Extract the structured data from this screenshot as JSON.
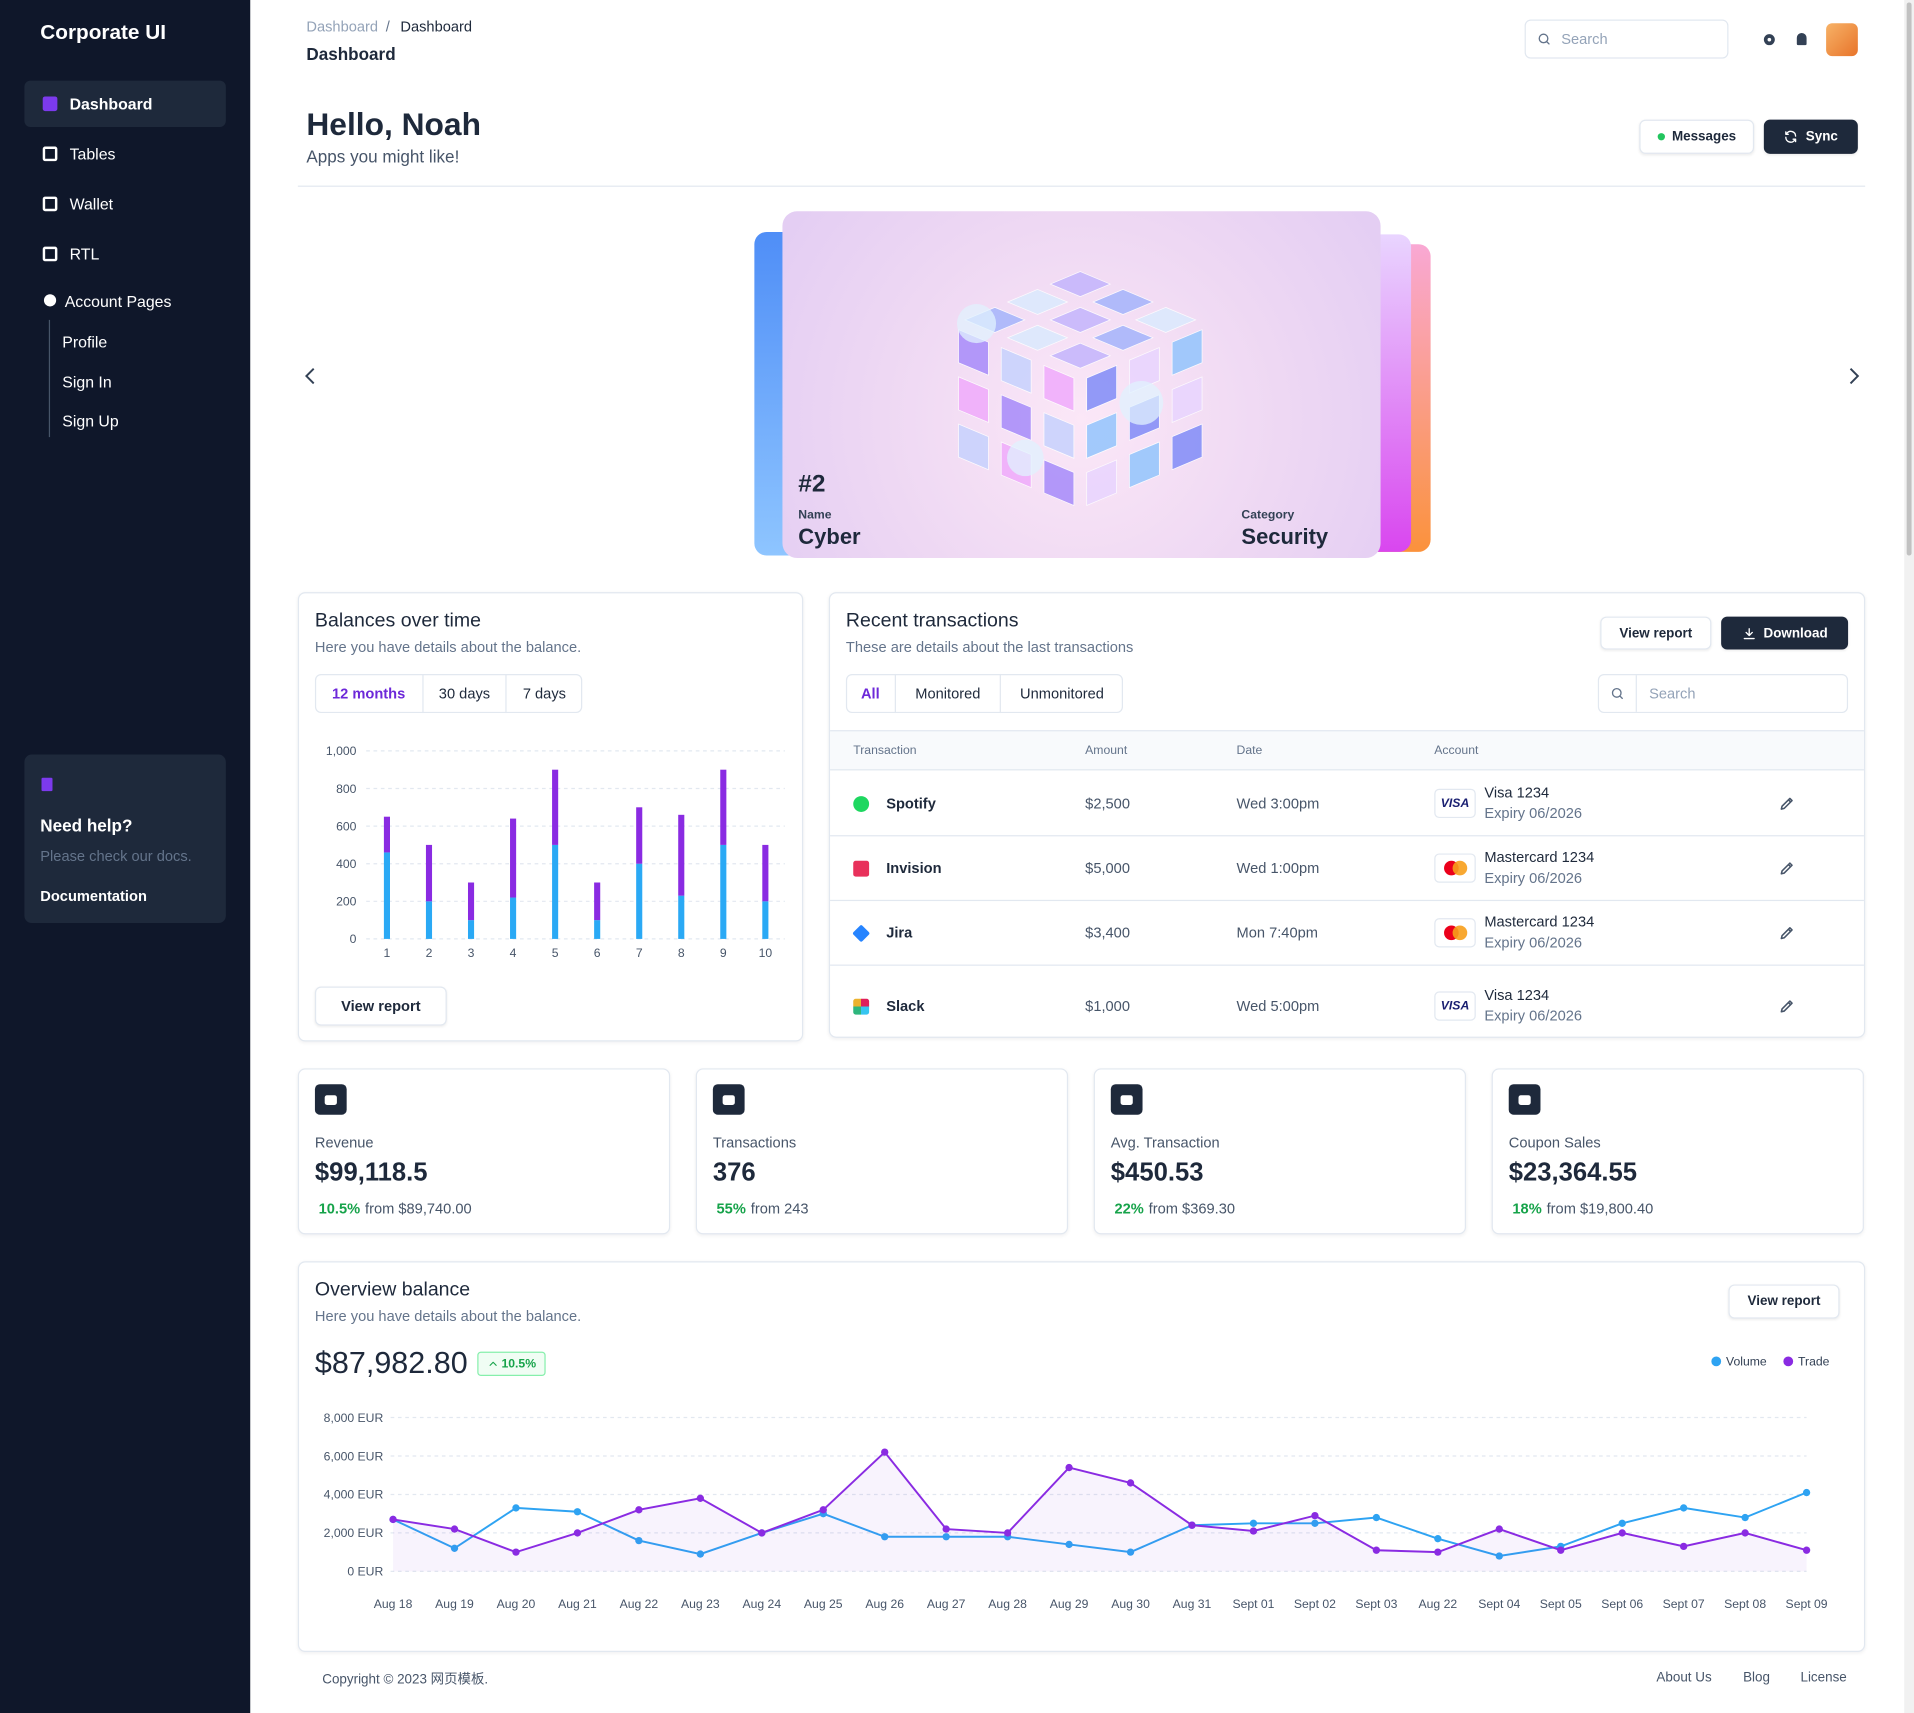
{
  "sidebar": {
    "brand": "Corporate UI",
    "nav": [
      "Dashboard",
      "Tables",
      "Wallet",
      "RTL",
      "Account Pages"
    ],
    "subnav": [
      "Profile",
      "Sign In",
      "Sign Up"
    ],
    "help": {
      "title": "Need help?",
      "text": "Please check our docs.",
      "link": "Documentation"
    }
  },
  "header": {
    "breadcrumb": [
      "Dashboard",
      "/",
      "Dashboard"
    ],
    "title": "Dashboard",
    "search": "Search"
  },
  "greeting": {
    "title": "Hello, Noah",
    "subtitle": "Apps you might like!",
    "buttons": [
      "Messages",
      "Sync"
    ]
  },
  "carousel": {
    "number": "#2",
    "name_label": "Name",
    "name": "Cyber",
    "category_label": "Category",
    "category": "Security"
  },
  "transactions": {
    "title": "Recent transactions",
    "subtitle": "These are details about the last transactions",
    "buttons": [
      "View report",
      "Download"
    ],
    "filters": [
      "All",
      "Monitored",
      "Unmonitored"
    ],
    "search": "Search",
    "columns": [
      "Transaction",
      "Amount",
      "Date",
      "Account"
    ],
    "rows": [
      {
        "name": "Spotify",
        "amount": "$2,500",
        "date": "Wed 3:00pm",
        "logo": "VISA",
        "card": "Visa 1234",
        "expiry": "Expiry 06/2026"
      },
      {
        "name": "Invision",
        "amount": "$5,000",
        "date": "Wed 1:00pm",
        "card": "Mastercard 1234",
        "expiry": "Expiry 06/2026"
      },
      {
        "name": "Jira",
        "amount": "$3,400",
        "date": "Mon 7:40pm",
        "card": "Mastercard 1234",
        "expiry": "Expiry 06/2026"
      },
      {
        "name": "Slack",
        "amount": "$1,000",
        "date": "Wed 5:00pm",
        "logo": "VISA",
        "card": "Visa 1234",
        "expiry": "Expiry 06/2026"
      }
    ]
  },
  "stats": [
    {
      "label": "Revenue",
      "value": "$99,118.5",
      "change": "10.5%",
      "from": "from $89,740.00"
    },
    {
      "label": "Transactions",
      "value": "376",
      "change": "55%",
      "from": "from 243"
    },
    {
      "label": "Avg. Transaction",
      "value": "$450.53",
      "change": "22%",
      "from": "from $369.30"
    },
    {
      "label": "Coupon Sales",
      "value": "$23,364.55",
      "change": "18%",
      "from": "from $19,800.40"
    }
  ],
  "footer": {
    "copyright": "Copyright © 2023 网页模板.",
    "links": [
      "About Us",
      "Blog",
      "License"
    ]
  },
  "chart_data": [
    {
      "type": "bar",
      "stacked": true,
      "title": "Balances over time",
      "subtitle": "Here you have details about the balance.",
      "tabs": [
        "12 months",
        "30 days",
        "7 days"
      ],
      "button": "View report",
      "categories": [
        "1",
        "2",
        "3",
        "4",
        "5",
        "6",
        "7",
        "8",
        "9",
        "10"
      ],
      "series": [
        {
          "color": "#2aa9f5",
          "values": [
            460,
            200,
            100,
            220,
            500,
            100,
            400,
            230,
            500,
            200
          ]
        },
        {
          "color": "#8a2be2",
          "values": [
            190,
            300,
            200,
            420,
            400,
            200,
            300,
            430,
            400,
            300
          ]
        }
      ],
      "ylim": [
        0,
        1000
      ],
      "yticks": [
        0,
        200,
        400,
        600,
        800,
        {
          "value": 1000,
          "label": "1,000"
        }
      ],
      "grid": true
    },
    {
      "type": "line",
      "title": "Overview balance",
      "subtitle": "Here you have details about the balance.",
      "button": "View report",
      "total": "$87,982.80",
      "change": "10.5%",
      "categories": [
        "Aug 18",
        "Aug 19",
        "Aug 20",
        "Aug 21",
        "Aug 22",
        "Aug 23",
        "Aug 24",
        "Aug 25",
        "Aug 26",
        "Aug 27",
        "Aug 28",
        "Aug 29",
        "Aug 30",
        "Aug 31",
        "Sept 01",
        "Sept 02",
        "Sept 03",
        "Aug 22",
        "Sept 04",
        "Sept 05",
        "Sept 06",
        "Sept 07",
        "Sept 08",
        "Sept 09"
      ],
      "series": [
        {
          "name": "Volume",
          "color": "#2ea3f2",
          "values": [
            2700,
            1200,
            3300,
            3100,
            1600,
            900,
            2000,
            3000,
            1800,
            1800,
            1800,
            1400,
            1000,
            2400,
            2500,
            2500,
            2800,
            1700,
            800,
            1300,
            2500,
            3300,
            2800,
            4100
          ]
        },
        {
          "name": "Trade",
          "color": "#8a2be2",
          "fill": true,
          "values": [
            2700,
            2200,
            1000,
            2000,
            3200,
            3800,
            2000,
            3200,
            6200,
            2200,
            2000,
            5400,
            4600,
            2400,
            2100,
            2900,
            1100,
            1000,
            2200,
            1100,
            2000,
            1300,
            2000,
            1100
          ]
        }
      ],
      "ylim": [
        0,
        8000
      ],
      "yticks": [
        {
          "value": 0,
          "label": "0 EUR"
        },
        {
          "value": 2000,
          "label": "2,000 EUR"
        },
        {
          "value": 4000,
          "label": "4,000 EUR"
        },
        {
          "value": 6000,
          "label": "6,000 EUR"
        },
        {
          "value": 8000,
          "label": "8,000 EUR"
        }
      ],
      "grid": true,
      "legend": "top-right"
    }
  ]
}
